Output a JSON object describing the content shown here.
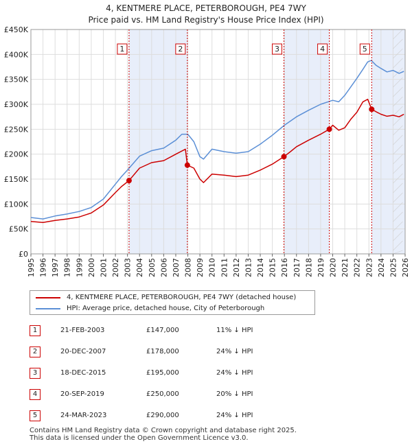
{
  "title_line1": "4, KENTMERE PLACE, PETERBOROUGH, PE4 7WY",
  "title_line2": "Price paid vs. HM Land Registry's House Price Index (HPI)",
  "chart_data": {
    "type": "line",
    "title": "4, KENTMERE PLACE, PETERBOROUGH, PE4 7WY — Price paid vs. HM Land Registry's House Price Index (HPI)",
    "xlabel": "",
    "ylabel": "",
    "xlim": [
      1995,
      2026
    ],
    "ylim": [
      0,
      450000
    ],
    "grid": true,
    "x_ticks": [
      1995,
      1996,
      1997,
      1998,
      1999,
      2000,
      2001,
      2002,
      2003,
      2004,
      2005,
      2006,
      2007,
      2008,
      2009,
      2010,
      2011,
      2012,
      2013,
      2014,
      2015,
      2016,
      2017,
      2018,
      2019,
      2020,
      2021,
      2022,
      2023,
      2024,
      2025,
      2026
    ],
    "y_ticks": [
      {
        "value": 0,
        "label": "£0"
      },
      {
        "value": 50000,
        "label": "£50K"
      },
      {
        "value": 100000,
        "label": "£100K"
      },
      {
        "value": 150000,
        "label": "£150K"
      },
      {
        "value": 200000,
        "label": "£200K"
      },
      {
        "value": 250000,
        "label": "£250K"
      },
      {
        "value": 300000,
        "label": "£300K"
      },
      {
        "value": 350000,
        "label": "£350K"
      },
      {
        "value": 400000,
        "label": "£400K"
      },
      {
        "value": 450000,
        "label": "£450K"
      }
    ],
    "forecast_start": 2025.0,
    "series": [
      {
        "name": "4, KENTMERE PLACE, PETERBOROUGH, PE4 7WY (detached house)",
        "color": "#cc0000",
        "x": [
          1995.0,
          1996.0,
          1997.0,
          1998.0,
          1999.0,
          2000.0,
          2001.0,
          2002.0,
          2002.5,
          2003.13,
          2004.0,
          2005.0,
          2006.0,
          2007.0,
          2007.8,
          2007.96,
          2008.5,
          2009.0,
          2009.3,
          2010.0,
          2011.0,
          2012.0,
          2013.0,
          2014.0,
          2015.0,
          2015.96,
          2016.5,
          2017.0,
          2018.0,
          2019.0,
          2019.72,
          2020.0,
          2020.5,
          2021.0,
          2021.5,
          2022.0,
          2022.5,
          2022.9,
          2023.23,
          2023.6,
          2024.0,
          2024.5,
          2025.0,
          2025.5,
          2025.9
        ],
        "values": [
          65000,
          63000,
          67000,
          70000,
          74000,
          82000,
          98000,
          123000,
          135000,
          147000,
          172000,
          183000,
          187000,
          200000,
          210000,
          178000,
          172000,
          150000,
          143000,
          160000,
          158000,
          155000,
          158000,
          168000,
          180000,
          195000,
          205000,
          215000,
          228000,
          240000,
          250000,
          258000,
          248000,
          253000,
          270000,
          284000,
          305000,
          310000,
          290000,
          285000,
          280000,
          276000,
          278000,
          275000,
          280000
        ]
      },
      {
        "name": "HPI: Average price, detached house, City of Peterborough",
        "color": "#5b8fd6",
        "x": [
          1995.0,
          1996.0,
          1997.0,
          1998.0,
          1999.0,
          2000.0,
          2001.0,
          2002.0,
          2002.5,
          2003.0,
          2004.0,
          2005.0,
          2006.0,
          2007.0,
          2007.5,
          2008.0,
          2008.5,
          2009.0,
          2009.3,
          2010.0,
          2011.0,
          2012.0,
          2013.0,
          2014.0,
          2015.0,
          2016.0,
          2017.0,
          2018.0,
          2019.0,
          2020.0,
          2020.5,
          2021.0,
          2021.5,
          2022.0,
          2022.5,
          2022.9,
          2023.2,
          2023.6,
          2024.0,
          2024.5,
          2025.0,
          2025.5,
          2025.9
        ],
        "values": [
          73000,
          70000,
          76000,
          80000,
          85000,
          93000,
          110000,
          140000,
          155000,
          168000,
          196000,
          207000,
          212000,
          228000,
          240000,
          240000,
          225000,
          195000,
          190000,
          210000,
          205000,
          202000,
          205000,
          220000,
          238000,
          258000,
          275000,
          288000,
          300000,
          308000,
          305000,
          318000,
          335000,
          352000,
          370000,
          385000,
          388000,
          378000,
          372000,
          365000,
          368000,
          362000,
          366000
        ]
      }
    ],
    "sales": [
      {
        "label": "1",
        "x": 2003.13,
        "price": 147000
      },
      {
        "label": "2",
        "x": 2007.96,
        "price": 178000
      },
      {
        "label": "3",
        "x": 2015.96,
        "price": 195000
      },
      {
        "label": "4",
        "x": 2019.72,
        "price": 250000
      },
      {
        "label": "5",
        "x": 2023.23,
        "price": 290000
      }
    ],
    "shaded_ranges": [
      {
        "start": 2003.13,
        "end": 2007.96
      },
      {
        "start": 2015.96,
        "end": 2019.72
      },
      {
        "start": 2023.23,
        "end": 2026.0
      }
    ]
  },
  "legend": {
    "property_label": "4, KENTMERE PLACE, PETERBOROUGH, PE4 7WY (detached house)",
    "hpi_label": "HPI: Average price, detached house, City of Peterborough"
  },
  "sales_table": [
    {
      "num": "1",
      "date": "21-FEB-2003",
      "price": "£147,000",
      "hpi": "11% ↓ HPI"
    },
    {
      "num": "2",
      "date": "20-DEC-2007",
      "price": "£178,000",
      "hpi": "24% ↓ HPI"
    },
    {
      "num": "3",
      "date": "18-DEC-2015",
      "price": "£195,000",
      "hpi": "24% ↓ HPI"
    },
    {
      "num": "4",
      "date": "20-SEP-2019",
      "price": "£250,000",
      "hpi": "20% ↓ HPI"
    },
    {
      "num": "5",
      "date": "24-MAR-2023",
      "price": "£290,000",
      "hpi": "24% ↓ HPI"
    }
  ],
  "footer": {
    "line1": "Contains HM Land Registry data © Crown copyright and database right 2025.",
    "line2": "This data is licensed under the Open Government Licence v3.0."
  }
}
